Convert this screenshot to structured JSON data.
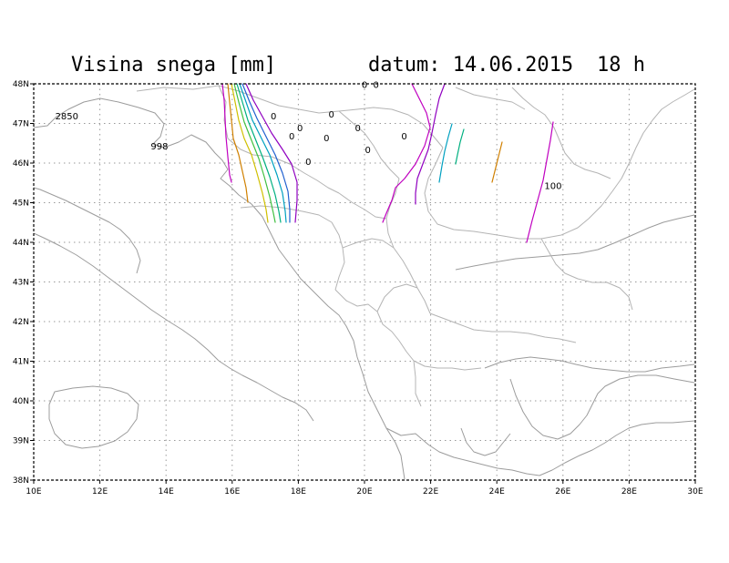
{
  "header": {
    "title": "Visina snega [mm]",
    "date_text": "datum: 14.06.2015",
    "hour_text": "18 h"
  },
  "map": {
    "lon_range": [
      10,
      30
    ],
    "lat_range": [
      38,
      48
    ],
    "lon_ticks": [
      "10E",
      "12E",
      "14E",
      "16E",
      "18E",
      "20E",
      "22E",
      "24E",
      "26E",
      "28E",
      "30E"
    ],
    "lat_ticks": [
      "38N",
      "39N",
      "40N",
      "41N",
      "42N",
      "43N",
      "44N",
      "45N",
      "46N",
      "47N",
      "48N"
    ],
    "contour_labels": [
      {
        "text": "2850",
        "lon": 11.0,
        "lat": 47.1
      },
      {
        "text": "998",
        "lon": 13.8,
        "lat": 46.35
      },
      {
        "text": "0",
        "lon": 20.0,
        "lat": 47.9
      },
      {
        "text": "0",
        "lon": 20.35,
        "lat": 47.9
      },
      {
        "text": "0",
        "lon": 19.0,
        "lat": 47.15
      },
      {
        "text": "0",
        "lon": 17.25,
        "lat": 47.1
      },
      {
        "text": "0",
        "lon": 18.05,
        "lat": 46.8
      },
      {
        "text": "0",
        "lon": 19.8,
        "lat": 46.8
      },
      {
        "text": "0",
        "lon": 17.8,
        "lat": 46.6
      },
      {
        "text": "0",
        "lon": 18.85,
        "lat": 46.55
      },
      {
        "text": "0",
        "lon": 21.2,
        "lat": 46.6
      },
      {
        "text": "0",
        "lon": 20.1,
        "lat": 46.25
      },
      {
        "text": "0",
        "lon": 18.3,
        "lat": 45.95
      },
      {
        "text": "100",
        "lon": 25.7,
        "lat": 45.35
      }
    ]
  },
  "colors": {
    "coast": "#9c9c9c",
    "border": "#b4b4b4",
    "contour_magenta": "#c000c0",
    "contour_purple": "#9000c0",
    "contour_orange": "#d08000",
    "contour_yellow": "#d0c000",
    "contour_green": "#40c040",
    "contour_teal": "#00b080",
    "contour_cyan": "#00a0c0",
    "contour_blue": "#2060d0"
  }
}
